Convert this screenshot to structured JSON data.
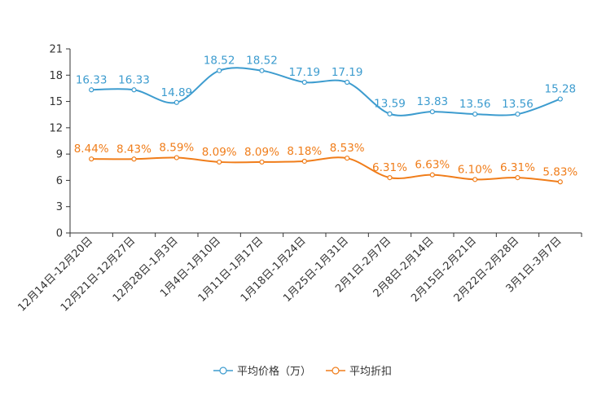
{
  "chart_data": {
    "type": "line",
    "categories": [
      "12月14日-12月20日",
      "12月21日-12月27日",
      "12月28日-1月3日",
      "1月4日-1月10日",
      "1月11日-1月17日",
      "1月18日-1月24日",
      "1月25日-1月31日",
      "2月1日-2月7日",
      "2月8日-2月14日",
      "2月15日-2月21日",
      "2月22日-2月28日",
      "3月1日-3月7日"
    ],
    "series": [
      {
        "name": "平均价格（万）",
        "color": "#3d9ccf",
        "values": [
          16.33,
          16.33,
          14.89,
          18.52,
          18.52,
          17.19,
          17.19,
          13.59,
          13.83,
          13.56,
          13.56,
          15.28
        ],
        "labels": [
          "16.33",
          "16.33",
          "14.89",
          "18.52",
          "18.52",
          "17.19",
          "17.19",
          "13.59",
          "13.83",
          "13.56",
          "13.56",
          "15.28"
        ]
      },
      {
        "name": "平均折扣",
        "color": "#f07d1a",
        "values": [
          8.44,
          8.43,
          8.59,
          8.09,
          8.09,
          8.18,
          8.53,
          6.31,
          6.63,
          6.1,
          6.31,
          5.83
        ],
        "labels": [
          "8.44%",
          "8.43%",
          "8.59%",
          "8.09%",
          "8.09%",
          "8.18%",
          "8.53%",
          "6.31%",
          "6.63%",
          "6.10%",
          "6.31%",
          "5.83%"
        ]
      }
    ],
    "ylim": [
      0,
      21
    ],
    "yticks": [
      0,
      3,
      6,
      9,
      12,
      15,
      18,
      21
    ],
    "yticklabels": [
      "0",
      "3",
      "6",
      "9",
      "12",
      "15",
      "18",
      "21"
    ],
    "grid": false,
    "legend_position": "bottom-center",
    "title": "",
    "xlabel": "",
    "ylabel": ""
  }
}
